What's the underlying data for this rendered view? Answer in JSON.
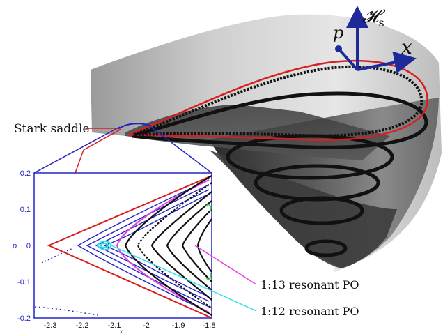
{
  "labels": {
    "saddle": "Stark saddle",
    "po13": "1:13 resonant  PO",
    "po12": "1:12 resonant PO"
  },
  "axes3d": {
    "vertical": "𝓗",
    "vertical_sub": "s",
    "x": "x",
    "p": "p"
  },
  "inset": {
    "xlabel": "x",
    "ylabel": "p",
    "xlim": [
      -2.35,
      -1.8
    ],
    "ylim": [
      -0.2,
      0.2
    ],
    "xticks": [
      "-2.3",
      "-2.2",
      "-2.1",
      "-2",
      "-1.9",
      "-1.8"
    ],
    "yticks": [
      "0.2",
      "0.1",
      "0",
      "-0.1",
      "-0.2"
    ]
  },
  "colors": {
    "red": "#d81e1e",
    "blue": "#2323c8",
    "magenta": "#e040e0",
    "cyan": "#30e0e8",
    "green": "#40d040",
    "dark": "#111111"
  }
}
